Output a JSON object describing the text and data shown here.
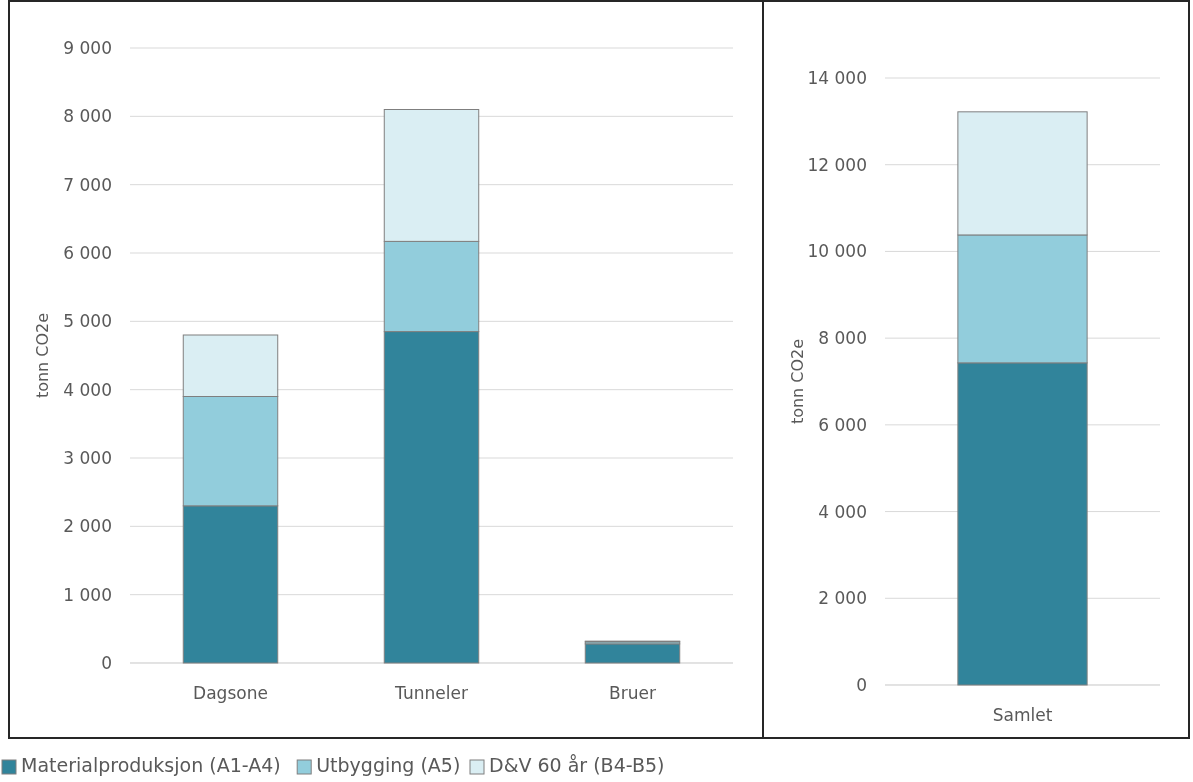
{
  "chart_data": [
    {
      "type": "bar",
      "stacked": true,
      "ylabel": "tonn CO2e",
      "categories": [
        "Dagsone",
        "Tunneler",
        "Bruer"
      ],
      "series": [
        {
          "name": "Materialproduksjon (A1-A4)",
          "color": "#31849b",
          "values": [
            2300,
            4850,
            280
          ]
        },
        {
          "name": "Utbygging (A5)",
          "color": "#92cddc",
          "values": [
            1600,
            1320,
            30
          ]
        },
        {
          "name": "D&V 60 år (B4-B5)",
          "color": "#daeef3",
          "values": [
            900,
            1930,
            10
          ]
        }
      ],
      "ylim": [
        0,
        9000
      ],
      "yticks": [
        0,
        {
          "value": 1000,
          "label": "1 000"
        },
        {
          "value": 2000,
          "label": "2 000"
        },
        {
          "value": 3000,
          "label": "3 000"
        },
        {
          "value": 4000,
          "label": "4 000"
        },
        {
          "value": 5000,
          "label": "5 000"
        },
        {
          "value": 6000,
          "label": "6 000"
        },
        {
          "value": 7000,
          "label": "7 000"
        },
        {
          "value": 8000,
          "label": "8 000"
        },
        {
          "value": 9000,
          "label": "9 000"
        }
      ],
      "grid": "y",
      "legend": "bottom"
    },
    {
      "type": "bar",
      "stacked": true,
      "ylabel": "tonn CO2e",
      "categories": [
        "Samlet"
      ],
      "series": [
        {
          "color": "#31849b",
          "values": [
            7430
          ]
        },
        {
          "color": "#92cddc",
          "values": [
            2950
          ]
        },
        {
          "color": "#daeef3",
          "values": [
            2840
          ]
        }
      ],
      "ylim": [
        0,
        14000
      ],
      "yticks": [
        0,
        {
          "value": 2000,
          "label": "2 000"
        },
        {
          "value": 4000,
          "label": "4 000"
        },
        {
          "value": 6000,
          "label": "6 000"
        },
        {
          "value": 8000,
          "label": "8 000"
        },
        {
          "value": 10000,
          "label": "10 000"
        },
        {
          "value": 12000,
          "label": "12 000"
        },
        {
          "value": 14000,
          "label": "14 000"
        }
      ],
      "grid": "y"
    }
  ]
}
